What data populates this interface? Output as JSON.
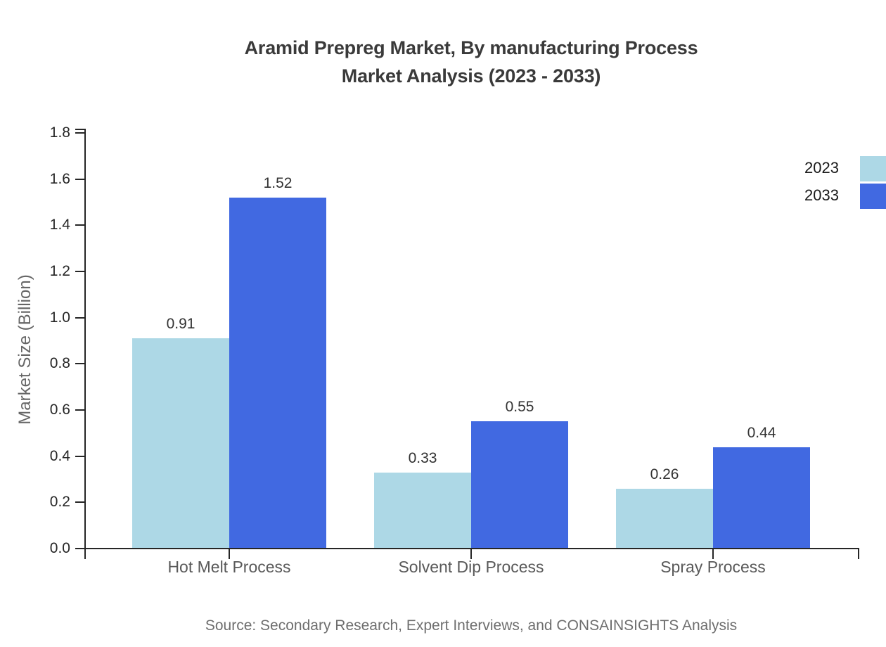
{
  "title": {
    "line1": "Aramid Prepreg Market, By manufacturing Process",
    "line2": "Market Analysis (2023 - 2033)"
  },
  "y_axis": {
    "label": "Market Size (Billion)",
    "tick_labels": [
      "0.0",
      "0.2",
      "0.4",
      "0.6",
      "0.8",
      "1.0",
      "1.2",
      "1.4",
      "1.6",
      "1.8"
    ]
  },
  "legend": {
    "items": [
      {
        "label": "2023",
        "color": "#ADD8E6"
      },
      {
        "label": "2033",
        "color": "#4169E1"
      }
    ]
  },
  "source": "Source: Secondary Research, Expert Interviews, and CONSAINSIGHTS Analysis",
  "chart_data": {
    "type": "bar",
    "categories": [
      "Hot Melt Process",
      "Solvent Dip Process",
      "Spray Process"
    ],
    "series": [
      {
        "name": "2023",
        "color": "#ADD8E6",
        "values": [
          0.91,
          0.33,
          0.26
        ]
      },
      {
        "name": "2033",
        "color": "#4169E1",
        "values": [
          1.52,
          0.55,
          0.44
        ]
      }
    ],
    "title": "Aramid Prepreg Market, By manufacturing Process Market Analysis (2023 - 2033)",
    "xlabel": "",
    "ylabel": "Market Size (Billion)",
    "ylim": [
      0,
      1.8
    ],
    "ytick_step": 0.2,
    "grid": false,
    "legend_position": "top-right",
    "value_labels": true,
    "value_label_decimals": 2
  }
}
